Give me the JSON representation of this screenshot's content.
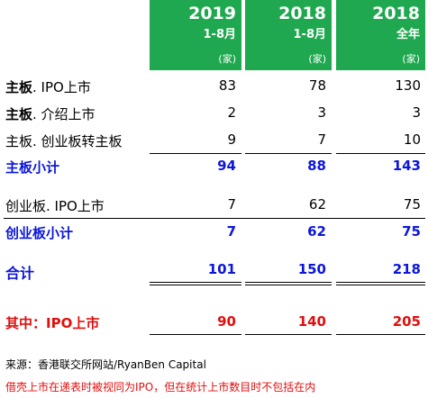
{
  "header": [
    {
      "year": "2019",
      "period": "1-8月",
      "unit": "(家)"
    },
    {
      "year": "2018",
      "period": "1-8月",
      "unit": "(家)"
    },
    {
      "year": "2018",
      "period": "全年",
      "unit": "(家)"
    }
  ],
  "rows": [
    {
      "label_bold": "主板",
      "label_rest": ". IPO上市",
      "values": [
        "83",
        "78",
        "130"
      ]
    },
    {
      "label_bold": "主板",
      "label_rest": ". 介绍上市",
      "values": [
        "2",
        "3",
        "3"
      ]
    },
    {
      "label_bold": "",
      "label_rest": "主板. 创业板转主板",
      "values": [
        "9",
        "7",
        "10"
      ]
    },
    {
      "label": "主板小计",
      "values": [
        "94",
        "88",
        "143"
      ]
    },
    {
      "label_bold": "",
      "label_rest": "创业板. IPO上市",
      "values": [
        "7",
        "62",
        "75"
      ]
    },
    {
      "label": "创业板小计",
      "values": [
        "7",
        "62",
        "75"
      ]
    },
    {
      "label": "合计",
      "values": [
        "101",
        "150",
        "218"
      ]
    },
    {
      "label": "其中：IPO上市",
      "values": [
        "90",
        "140",
        "205"
      ]
    }
  ],
  "source": "来源：香港联交所网站/RyanBen Capital",
  "note": "借壳上市在递表时被视同为IPO，但在统计上市数目时不包括在内",
  "colors": {
    "header_bg": "#1fa84f",
    "subtotal": "#0b16d9",
    "highlight": "#e10e0e"
  }
}
